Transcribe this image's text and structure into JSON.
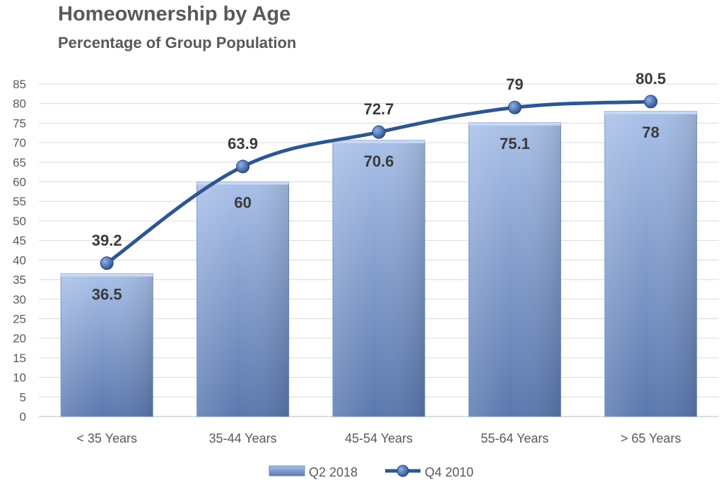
{
  "title": "Homeownership by Age",
  "subtitle": "Percentage of Group Population",
  "colors": {
    "bar_top": "#a9c0e8",
    "bar_bottom": "#5a78ae",
    "line": "#2e5593",
    "marker": "#3f68ad",
    "grid": "#d9d9d9"
  },
  "chart_data": {
    "type": "bar",
    "title": "Homeownership by Age",
    "subtitle": "Percentage of Group Population",
    "categories": [
      "< 35 Years",
      "35-44 Years",
      "45-54 Years",
      "55-64 Years",
      "> 65 Years"
    ],
    "series": [
      {
        "name": "Q2 2018",
        "type": "bar",
        "values": [
          36.5,
          60,
          70.6,
          75.1,
          78
        ]
      },
      {
        "name": "Q4 2010",
        "type": "line",
        "values": [
          39.2,
          63.9,
          72.7,
          79,
          80.5
        ]
      }
    ],
    "ylim": [
      0,
      85
    ],
    "yticks": [
      0,
      5,
      10,
      15,
      20,
      25,
      30,
      35,
      40,
      45,
      50,
      55,
      60,
      65,
      70,
      75,
      80,
      85
    ],
    "grid": true,
    "legend": "bottom"
  }
}
